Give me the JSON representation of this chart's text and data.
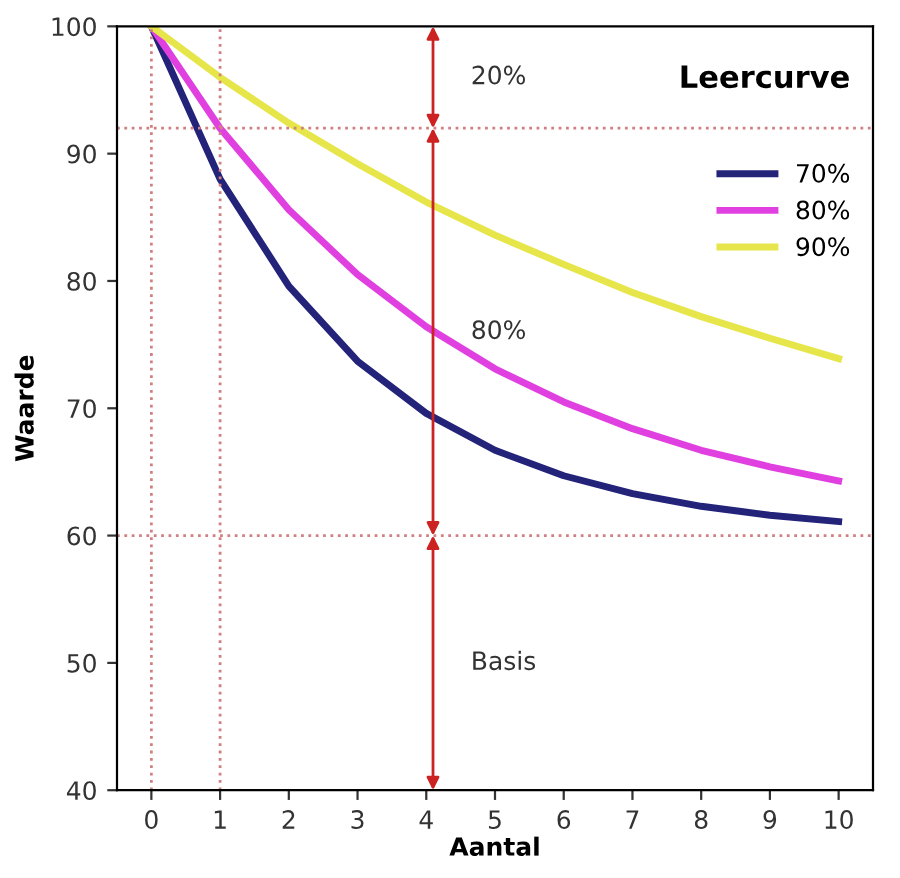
{
  "chart_data": {
    "type": "line",
    "title": "Leercurve",
    "xlabel": "Aantal",
    "ylabel": "Waarde",
    "x": [
      0,
      1,
      2,
      3,
      4,
      5,
      6,
      7,
      8,
      9,
      10
    ],
    "series": [
      {
        "name": "70%",
        "color": "#23237a",
        "values": [
          100,
          88,
          79.6,
          73.7,
          69.6,
          66.7,
          64.7,
          63.3,
          62.3,
          61.6,
          61.1
        ]
      },
      {
        "name": "80%",
        "color": "#e040e0",
        "values": [
          100,
          92,
          85.6,
          80.5,
          76.4,
          73.1,
          70.5,
          68.4,
          66.7,
          65.4,
          64.3
        ]
      },
      {
        "name": "90%",
        "color": "#e6e64a",
        "values": [
          100,
          96,
          92.4,
          89.2,
          86.2,
          83.6,
          81.3,
          79.1,
          77.2,
          75.5,
          73.9
        ]
      }
    ],
    "xlim": [
      -0.5,
      10.5
    ],
    "xticks": [
      0,
      1,
      2,
      3,
      4,
      5,
      6,
      7,
      8,
      9,
      10
    ],
    "ylim": [
      40,
      100
    ],
    "yticks": [
      40,
      50,
      60,
      70,
      80,
      90,
      100
    ],
    "ref_lines": [
      {
        "axis": "y",
        "value": 92,
        "color": "#d08080",
        "line_style": "dotted"
      },
      {
        "axis": "y",
        "value": 60,
        "color": "#d08080",
        "line_style": "dotted"
      },
      {
        "axis": "x",
        "value": 0,
        "color": "#d08080",
        "line_style": "dotted"
      },
      {
        "axis": "x",
        "value": 1,
        "color": "#d08080",
        "line_style": "dotted"
      }
    ],
    "annotations": [
      "20%",
      "80%",
      "Basis"
    ],
    "grid": false,
    "legend": "top right",
    "marker": "none",
    "line_style": "solid"
  }
}
